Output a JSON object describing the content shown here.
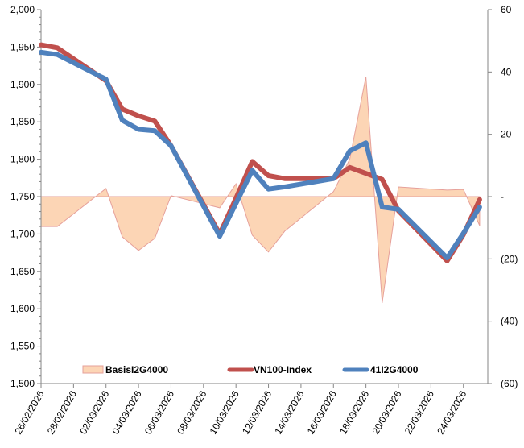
{
  "chart_data": {
    "type": "line",
    "title": "",
    "xlabel": "",
    "ylabel": "",
    "y2label": "",
    "grid": false,
    "legend_position": "bottom-inside",
    "x_tick_labels": [
      "26/02/2026",
      "28/02/2026",
      "02/03/2026",
      "04/03/2026",
      "06/03/2026",
      "08/03/2026",
      "10/03/2026",
      "12/03/2026",
      "14/03/2026",
      "16/03/2026",
      "18/03/2026",
      "20/03/2026",
      "22/03/2026",
      "24/03/2026"
    ],
    "x_range": [
      "26/02/2026",
      "25/03/2026"
    ],
    "y_left": {
      "range": [
        1500,
        2000
      ],
      "ticks": [
        2000,
        1950,
        1900,
        1850,
        1800,
        1750,
        1700,
        1650,
        1600,
        1550,
        1500
      ],
      "tick_labels": [
        "2,000",
        "1,950",
        "1,900",
        "1,850",
        "1,800",
        "1,750",
        "1,700",
        "1,650",
        "1,600",
        "1,550",
        "1,500"
      ]
    },
    "y_right": {
      "range": [
        -60,
        60
      ],
      "ticks": [
        60,
        40,
        20,
        0,
        -20,
        -40,
        -60
      ],
      "tick_labels": [
        "60",
        "40",
        "20",
        "-",
        "(20)",
        "(40)",
        "(60)"
      ]
    },
    "x": [
      "26/02/2026",
      "27/02/2026",
      "02/03/2026",
      "03/03/2026",
      "04/03/2026",
      "05/03/2026",
      "06/03/2026",
      "09/03/2026",
      "10/03/2026",
      "11/03/2026",
      "12/03/2026",
      "13/03/2026",
      "16/03/2026",
      "17/03/2026",
      "18/03/2026",
      "19/03/2026",
      "20/03/2026",
      "23/03/2026",
      "24/03/2026",
      "25/03/2026"
    ],
    "series": [
      {
        "name": "BasisI2G4000",
        "type": "area",
        "axis": "right",
        "color": "#fcd5b5",
        "stroke": "#e6a09a",
        "values": [
          -9.6,
          -9.6,
          2.6,
          -12.9,
          -17.3,
          -13.4,
          0.3,
          -3.6,
          4.1,
          -12.4,
          -17.8,
          -11.1,
          1.6,
          12.0,
          38.5,
          -34.1,
          3.1,
          2.1,
          2.3,
          -9.3
        ]
      },
      {
        "name": "VN100-Index",
        "type": "line",
        "axis": "left",
        "color": "#c0504d",
        "values": [
          1953,
          1949,
          1905,
          1867,
          1858,
          1851,
          1818,
          1700,
          1748,
          1797,
          1778,
          1774,
          1774,
          1789,
          1781,
          1773,
          1731,
          1664,
          1699,
          1746
        ]
      },
      {
        "name": "41I2G4000",
        "type": "line",
        "axis": "left",
        "color": "#4f81bd",
        "values": [
          1943,
          1940,
          1907,
          1852,
          1840,
          1838,
          1818,
          1697,
          1741,
          1785,
          1760,
          1763,
          1774,
          1811,
          1822,
          1736,
          1733,
          1668,
          1701,
          1736
        ]
      }
    ],
    "legend": [
      {
        "label": "BasisI2G4000",
        "marker": "area"
      },
      {
        "label": "VN100-Index",
        "marker": "line"
      },
      {
        "label": "41I2G4000",
        "marker": "line"
      }
    ]
  }
}
